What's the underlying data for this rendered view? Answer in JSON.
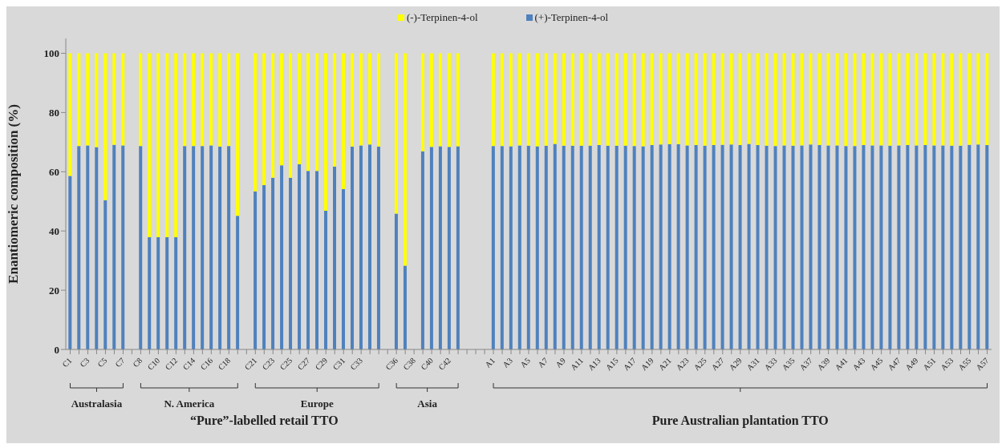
{
  "chart_data": {
    "type": "bar",
    "stacked": true,
    "ylabel": "Enantiomeric composition (%)",
    "ylim": [
      0,
      105
    ],
    "yticks": [
      0,
      20,
      40,
      60,
      80,
      100
    ],
    "legend": "top",
    "categories": [
      "C1",
      null,
      "C3",
      null,
      "C5",
      null,
      "C7",
      null,
      "C8",
      null,
      "C10",
      null,
      "C12",
      null,
      "C14",
      null,
      "C16",
      null,
      "C18",
      null,
      null,
      "C21",
      null,
      "C23",
      null,
      "C25",
      null,
      "C27",
      null,
      "C29",
      null,
      "C31",
      null,
      "C33",
      null,
      null,
      null,
      "C36",
      null,
      "C38",
      null,
      "C40",
      null,
      "C42",
      null,
      null,
      null,
      null,
      "A1",
      null,
      "A3",
      null,
      "A5",
      null,
      "A7",
      null,
      "A9",
      null,
      "A11",
      null,
      "A13",
      null,
      "A15",
      null,
      "A17",
      null,
      "A19",
      null,
      "A21",
      null,
      "A23",
      null,
      "A25",
      null,
      "A27",
      null,
      "A29",
      null,
      "A31",
      null,
      "A33",
      null,
      "A35",
      null,
      "A37",
      null,
      "A39",
      null,
      "A41",
      null,
      "A43",
      null,
      "A45",
      null,
      "A47",
      null,
      "A49",
      null,
      "A51",
      null,
      "A53",
      null,
      "A55",
      null,
      "A57"
    ],
    "series": [
      {
        "name": "(+)-Terpinen-4-ol",
        "color": "#4f81bd",
        "values": [
          58.6,
          68.7,
          68.9,
          68.3,
          50.4,
          69.1,
          68.9,
          null,
          68.7,
          37.9,
          37.9,
          37.9,
          37.9,
          68.7,
          68.7,
          68.7,
          68.9,
          68.5,
          68.7,
          45.1,
          null,
          53.4,
          55.5,
          58.0,
          62.2,
          58.0,
          62.5,
          60.3,
          60.3,
          46.8,
          61.8,
          54.1,
          68.5,
          68.9,
          69.2,
          68.5,
          null,
          45.9,
          28.3,
          null,
          66.9,
          68.4,
          68.6,
          68.4,
          68.6,
          null,
          null,
          null,
          68.7,
          68.7,
          68.6,
          68.9,
          68.8,
          68.6,
          68.8,
          69.4,
          68.8,
          68.8,
          68.8,
          68.8,
          69.0,
          68.8,
          68.8,
          68.8,
          68.7,
          68.6,
          69.0,
          69.2,
          69.3,
          69.3,
          68.9,
          69.0,
          68.8,
          69.0,
          69.1,
          69.2,
          69.0,
          69.4,
          69.0,
          68.8,
          68.7,
          68.9,
          68.8,
          68.9,
          69.2,
          69.0,
          68.9,
          68.9,
          68.7,
          68.7,
          69.0,
          68.9,
          68.9,
          68.8,
          68.9,
          69.0,
          68.9,
          69.0,
          68.9,
          68.9,
          68.8,
          68.8,
          69.1,
          69.2,
          69.0
        ]
      },
      {
        "name": "(-)-Terpinen-4-ol",
        "color": "#ffff00",
        "values": [
          41.4,
          31.3,
          31.1,
          31.7,
          49.6,
          30.9,
          31.1,
          null,
          31.3,
          62.1,
          62.1,
          62.1,
          62.1,
          31.3,
          31.3,
          31.3,
          31.1,
          31.5,
          31.3,
          54.9,
          null,
          46.6,
          44.5,
          42.0,
          37.8,
          42.0,
          37.5,
          39.7,
          39.7,
          53.2,
          38.2,
          45.9,
          31.5,
          31.1,
          30.8,
          31.5,
          null,
          54.1,
          71.7,
          null,
          33.1,
          31.6,
          31.4,
          31.6,
          31.4,
          null,
          null,
          null,
          31.3,
          31.3,
          31.4,
          31.1,
          31.2,
          31.4,
          31.2,
          30.6,
          31.2,
          31.2,
          31.2,
          31.2,
          31.0,
          31.2,
          31.2,
          31.2,
          31.3,
          31.4,
          31.0,
          30.8,
          30.7,
          30.7,
          31.1,
          31.0,
          31.2,
          31.0,
          30.9,
          30.8,
          31.0,
          30.6,
          31.0,
          31.2,
          31.3,
          31.1,
          31.2,
          31.1,
          30.8,
          31.0,
          31.1,
          31.1,
          31.3,
          31.3,
          31.0,
          31.1,
          31.1,
          31.2,
          31.1,
          31.0,
          31.1,
          31.0,
          31.1,
          31.1,
          31.2,
          31.2,
          30.9,
          30.8,
          31.0
        ]
      }
    ],
    "annotations": [
      "Australasia",
      "N. America",
      "Europe",
      "Asia",
      "“Pure”-labelled retail TTO",
      "Pure Australian plantation TTO"
    ]
  }
}
